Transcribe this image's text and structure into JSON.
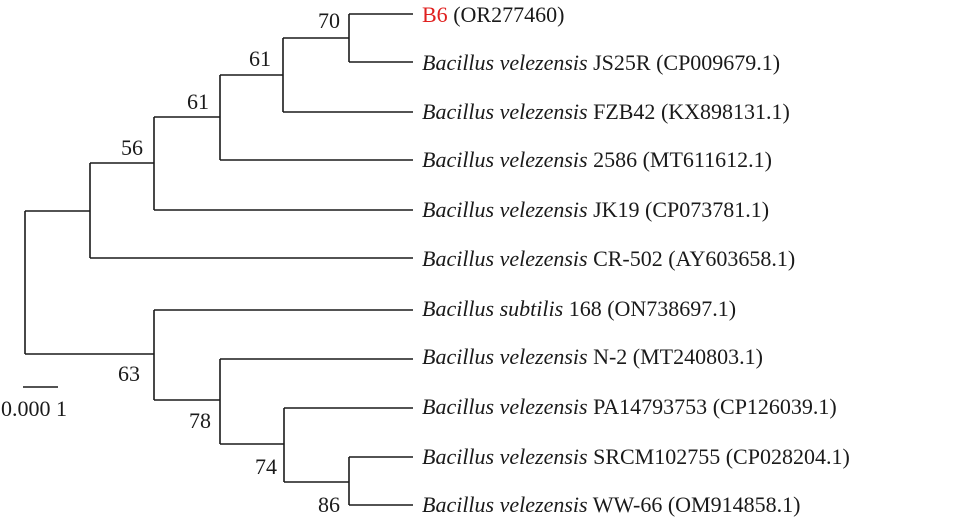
{
  "leaves": [
    {
      "genus_species": "",
      "strain": "B6",
      "accession": "(OR277460)",
      "highlight": true
    },
    {
      "genus_species": "Bacillus velezensis",
      "strain": "JS25R",
      "accession": "(CP009679.1)"
    },
    {
      "genus_species": "Bacillus velezensis",
      "strain": "FZB42",
      "accession": "(KX898131.1)"
    },
    {
      "genus_species": "Bacillus velezensis",
      "strain": "2586",
      "accession": "(MT611612.1)"
    },
    {
      "genus_species": "Bacillus velezensis",
      "strain": "JK19",
      "accession": "(CP073781.1)"
    },
    {
      "genus_species": "Bacillus velezensis",
      "strain": "CR-502",
      "accession": "(AY603658.1)"
    },
    {
      "genus_species": "Bacillus subtilis",
      "strain": "168",
      "accession": "(ON738697.1)"
    },
    {
      "genus_species": "Bacillus velezensis",
      "strain": "N-2",
      "accession": "(MT240803.1)"
    },
    {
      "genus_species": "Bacillus velezensis",
      "strain": "PA14793753",
      "accession": "(CP126039.1)"
    },
    {
      "genus_species": "Bacillus velezensis",
      "strain": "SRCM102755",
      "accession": "(CP028204.1)"
    },
    {
      "genus_species": "Bacillus velezensis",
      "strain": "WW-66",
      "accession": "(OM914858.1)"
    }
  ],
  "bootstrap": {
    "n70": "70",
    "n61a": "61",
    "n61b": "61",
    "n56": "56",
    "n63": "63",
    "n78": "78",
    "n74": "74",
    "n86": "86"
  },
  "scale_bar": {
    "label": "0.000 1"
  },
  "colors": {
    "highlight": "#e0201f",
    "lines": "#1a1a1a"
  }
}
